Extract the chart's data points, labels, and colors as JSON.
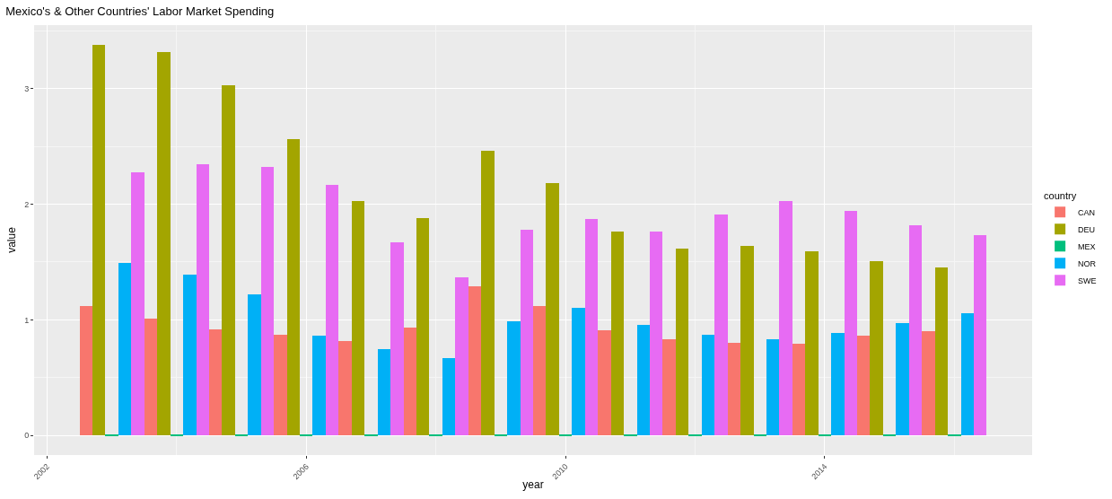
{
  "chart_data": {
    "type": "bar",
    "title": "Mexico's & Other Countries' Labor Market Spending",
    "xlabel": "year",
    "ylabel": "value",
    "legend_title": "country",
    "x": [
      2003,
      2004,
      2005,
      2006,
      2007,
      2008,
      2009,
      2010,
      2011,
      2012,
      2013,
      2014,
      2015,
      2016
    ],
    "series": [
      {
        "name": "CAN",
        "color": "#f8766d",
        "values": [
          1.12,
          1.01,
          0.92,
          0.87,
          0.82,
          0.93,
          1.29,
          1.12,
          0.91,
          0.83,
          0.8,
          0.79,
          0.86,
          0.9
        ]
      },
      {
        "name": "DEU",
        "color": "#a3a500",
        "values": [
          3.38,
          3.32,
          3.03,
          2.56,
          2.03,
          1.88,
          2.46,
          2.18,
          1.76,
          1.62,
          1.64,
          1.59,
          1.51,
          1.45
        ]
      },
      {
        "name": "MEX",
        "color": "#00bf7d",
        "values": [
          0.01,
          0.01,
          0.01,
          0.01,
          0.01,
          0.01,
          0.01,
          0.01,
          0.01,
          0.01,
          0.01,
          0.01,
          0.01,
          0.01
        ]
      },
      {
        "name": "NOR",
        "color": "#00b0f6",
        "values": [
          1.49,
          1.39,
          1.22,
          0.86,
          0.75,
          0.67,
          0.99,
          1.1,
          0.96,
          0.87,
          0.83,
          0.89,
          0.97,
          1.06
        ]
      },
      {
        "name": "SWE",
        "color": "#e76bf3",
        "values": [
          2.28,
          2.35,
          2.32,
          2.17,
          1.67,
          1.37,
          1.78,
          1.87,
          1.76,
          1.91,
          2.03,
          1.94,
          1.82,
          1.73
        ]
      }
    ],
    "xlim": [
      2001.8,
      2017.2
    ],
    "xticks": [
      2002,
      2006,
      2010,
      2014
    ],
    "ylim": [
      -0.17,
      3.55
    ],
    "yticks": [
      0,
      1,
      2,
      3
    ],
    "grid": true,
    "legend": "right"
  }
}
